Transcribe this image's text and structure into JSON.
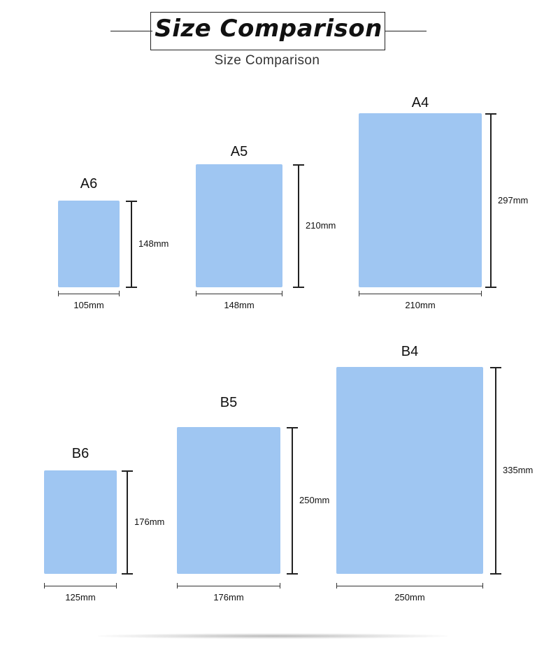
{
  "header": {
    "title": "Size Comparison",
    "subtitle": "Size Comparison"
  },
  "colors": {
    "sheet": "#9fc6f2",
    "line": "#222222"
  },
  "papers": [
    {
      "id": "a6",
      "name": "A6",
      "width": "105mm",
      "height": "148mm"
    },
    {
      "id": "a5",
      "name": "A5",
      "width": "148mm",
      "height": "210mm"
    },
    {
      "id": "a4",
      "name": "A4",
      "width": "210mm",
      "height": "297mm"
    },
    {
      "id": "b6",
      "name": "B6",
      "width": "125mm",
      "height": "176mm"
    },
    {
      "id": "b5",
      "name": "B5",
      "width": "176mm",
      "height": "250mm"
    },
    {
      "id": "b4",
      "name": "B4",
      "width": "250mm",
      "height": "335mm"
    }
  ]
}
